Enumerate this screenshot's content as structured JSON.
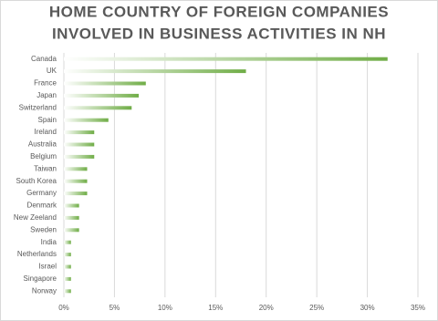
{
  "chart_data": {
    "type": "barh",
    "title": [
      "HOME COUNTRY OF FOREIGN COMPANIES",
      "INVOLVED IN BUSINESS ACTIVITIES IN NH"
    ],
    "categories": [
      "Canada",
      "UK",
      "France",
      "Japan",
      "Switzerland",
      "Spain",
      "Ireland",
      "Australia",
      "Belgium",
      "Taiwan",
      "South Korea",
      "Germany",
      "Denmark",
      "New Zeeland",
      "Sweden",
      "India",
      "Netherlands",
      "Israel",
      "Singapore",
      "Norway"
    ],
    "values": [
      32,
      18,
      8.1,
      7.4,
      6.7,
      4.4,
      3,
      3,
      3,
      2.3,
      2.3,
      2.3,
      1.5,
      1.5,
      1.5,
      0.7,
      0.7,
      0.7,
      0.7,
      0.7
    ],
    "color": "#70ad47",
    "xlim": [
      0,
      35
    ],
    "xticks": [
      {
        "value": 0,
        "label": "0%"
      },
      {
        "value": 5,
        "label": "5%"
      },
      {
        "value": 10,
        "label": "10%"
      },
      {
        "value": 15,
        "label": "15%"
      },
      {
        "value": 20,
        "label": "20%"
      },
      {
        "value": 25,
        "label": "25%"
      },
      {
        "value": 30,
        "label": "30%"
      },
      {
        "value": 35,
        "label": "35%"
      }
    ],
    "grid": true
  }
}
